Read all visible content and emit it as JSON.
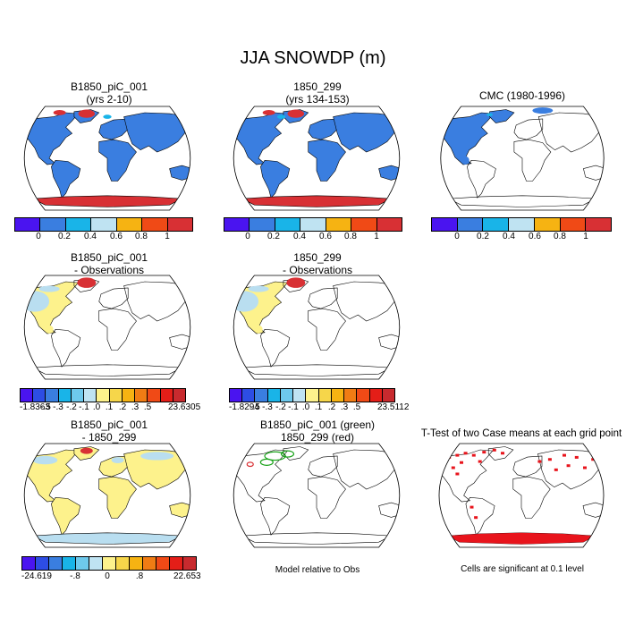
{
  "page": {
    "title": "JJA SNOWDP (m)",
    "note_model": "Model relative to Obs",
    "note_ttest": "Cells are significant at 0.1 level"
  },
  "colors": {
    "land_blue": "#3a7ee0",
    "ocean": "#ffffff",
    "diff_yellow": "#fdf28c",
    "diff_light": "#b9def0",
    "diff_red": "#d83034",
    "green": "#1aa21a",
    "sig_red": "#e8141c",
    "palette_abs": [
      "#4a14f0",
      "#3a7ee0",
      "#19b4e8",
      "#bfe3f2",
      "#f6b312",
      "#f04a16",
      "#d83034"
    ],
    "palette_diff": [
      "#4a14f0",
      "#2d4de4",
      "#3a7ee0",
      "#19b4e8",
      "#6ec9ec",
      "#bfe3f2",
      "#fdf28c",
      "#f6d64a",
      "#f6b312",
      "#f07c14",
      "#f04a16",
      "#e41e18",
      "#c82a2e"
    ]
  },
  "panels": {
    "p1": {
      "line1": "B1850_piC_001",
      "line2": "(yrs 2-10)"
    },
    "p2": {
      "line1": "1850_299",
      "line2": "(yrs 134-153)"
    },
    "p3": {
      "line1": "CMC (1980-1996)"
    },
    "p4": {
      "line1": "B1850_piC_001",
      "line2": "- Observations"
    },
    "p5": {
      "line1": "1850_299",
      "line2": "- Observations"
    },
    "p7": {
      "line1": "B1850_piC_001",
      "line2": "- 1850_299"
    },
    "p8": {
      "line1": "B1850_piC_001 (green)",
      "line2": "1850_299 (red)"
    },
    "p9": {
      "line1": "T-Test of two Case means at each grid point"
    }
  },
  "chart_data": [
    {
      "type": "heatmap",
      "title": "B1850_piC_001 (yrs 2-10)",
      "colorbar_ticks": [
        "0",
        "0.2",
        "0.4",
        "0.6",
        "0.8",
        "1"
      ],
      "shading": "snow depth over land, Antarctica deep"
    },
    {
      "type": "heatmap",
      "title": "1850_299 (yrs 134-153)",
      "colorbar_ticks": [
        "0",
        "0.2",
        "0.4",
        "0.6",
        "0.8",
        "1"
      ],
      "shading": "snow depth over land, Antarctica deep"
    },
    {
      "type": "heatmap",
      "title": "CMC (1980-1996)",
      "colorbar_ticks": [
        "0",
        "0.2",
        "0.4",
        "0.6",
        "0.8",
        "1"
      ],
      "shading": "North America only"
    },
    {
      "type": "heatmap",
      "title": "B1850_piC_001 - Observations",
      "colorbar_ticks": [
        "-1.8363",
        "-.5",
        "-.3",
        "-.2",
        "-.1",
        ".0",
        ".1",
        ".2",
        ".3",
        ".5",
        "23.6305"
      ]
    },
    {
      "type": "heatmap",
      "title": "1850_299 - Observations",
      "colorbar_ticks": [
        "-1.8294",
        "-.5",
        "-.3",
        "-.2",
        "-.1",
        ".0",
        ".1",
        ".2",
        ".3",
        ".5",
        "23.5112"
      ]
    },
    {
      "type": "heatmap",
      "title": "B1850_piC_001 - 1850_299",
      "colorbar_ticks": [
        "-24.619",
        "-.8",
        "0",
        ".8",
        "22.653"
      ]
    },
    {
      "type": "heatmap",
      "title": "B1850_piC_001 (green) 1850_299 (red)"
    },
    {
      "type": "heatmap",
      "title": "T-Test of two Case means at each grid point"
    }
  ]
}
